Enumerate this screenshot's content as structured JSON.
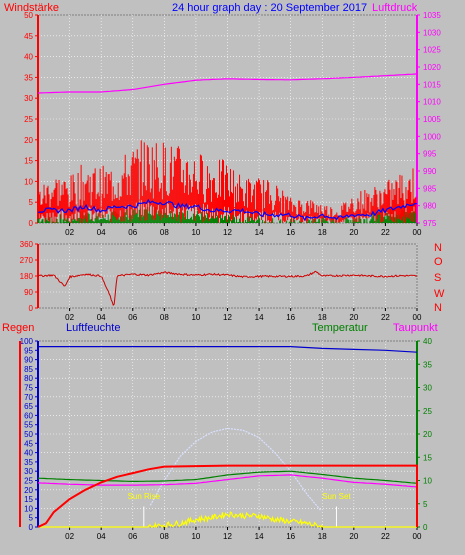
{
  "header": {
    "left_label": "Windstärke",
    "title": "24 hour graph day : 20 September 2017",
    "right_label": "Luftdruck"
  },
  "colors": {
    "background": "#c0c0c0",
    "plot_bg": "#c0c0c0",
    "grid": "#ffffff",
    "axis_dark": "#000000",
    "wind_red": "#ff0000",
    "wind_blue": "#0000ff",
    "wind_green": "#008000",
    "pressure_magenta": "#ff00ff",
    "direction_red": "#cc0000",
    "humidity_blue": "#0000cc",
    "temperature_green": "#008000",
    "dewpoint_magenta": "#ff00ff",
    "rain_red": "#ff0000",
    "solar_yellow": "#ffff00",
    "daylight_curve": "#d8e0ff"
  },
  "chart_data": [
    {
      "type": "line",
      "title": "24 hour graph day : 20 September 2017",
      "x_ticks": [
        "02",
        "04",
        "06",
        "08",
        "10",
        "12",
        "14",
        "16",
        "18",
        "20",
        "22",
        "00"
      ],
      "left_axis": {
        "label": "Windstärke",
        "ticks": [
          0,
          5,
          10,
          15,
          20,
          25,
          30,
          35,
          40,
          45,
          50
        ],
        "ylim": [
          0,
          50
        ]
      },
      "right_axis": {
        "label": "Luftdruck",
        "ticks": [
          975,
          980,
          985,
          990,
          995,
          1000,
          1005,
          1010,
          1015,
          1020,
          1025,
          1030,
          1035
        ],
        "ylim": [
          975,
          1035
        ]
      },
      "series": [
        {
          "color": "red",
          "axis": "left",
          "x": [
            0,
            1,
            2,
            3,
            4,
            5,
            6,
            7,
            8,
            9,
            10,
            11,
            12,
            13,
            14,
            15,
            16,
            17,
            18,
            19,
            20,
            21,
            22,
            23,
            24
          ],
          "y": [
            7,
            10,
            9,
            12,
            11,
            12,
            15,
            17,
            16,
            15,
            14,
            13,
            12,
            9,
            9,
            8,
            5,
            5,
            4,
            3,
            6,
            7,
            8,
            10,
            12
          ]
        },
        {
          "color": "blue",
          "axis": "left",
          "x": [
            0,
            1,
            2,
            3,
            4,
            5,
            6,
            7,
            8,
            9,
            10,
            11,
            12,
            13,
            14,
            15,
            16,
            17,
            18,
            19,
            20,
            21,
            22,
            23,
            24
          ],
          "y": [
            3,
            3,
            3,
            4,
            3,
            4,
            4,
            5,
            5,
            4,
            4,
            3,
            3,
            3,
            2,
            2,
            2,
            1,
            2,
            1,
            2,
            2,
            3,
            4,
            5
          ]
        },
        {
          "color": "green",
          "axis": "left",
          "x": [
            0,
            1,
            2,
            3,
            4,
            5,
            6,
            7,
            8,
            9,
            10,
            11,
            12,
            13,
            14,
            15,
            16,
            17,
            18,
            19,
            20,
            21,
            22,
            23,
            24
          ],
          "y": [
            1,
            1,
            1,
            2,
            1,
            2,
            2,
            3,
            3,
            2,
            2,
            1,
            1,
            1,
            1,
            0,
            0,
            0,
            1,
            0,
            1,
            1,
            2,
            3,
            3
          ]
        },
        {
          "color": "magenta",
          "axis": "right",
          "x": [
            0,
            2,
            4,
            6,
            8,
            10,
            12,
            14,
            16,
            18,
            20,
            22,
            24
          ],
          "y": [
            1012.5,
            1012.8,
            1012.8,
            1013.5,
            1015,
            1016.2,
            1016.6,
            1016.4,
            1016.3,
            1016.6,
            1017,
            1017.5,
            1018
          ]
        }
      ]
    },
    {
      "type": "line",
      "x_ticks": [
        "02",
        "04",
        "06",
        "08",
        "10",
        "12",
        "14",
        "16",
        "18",
        "20",
        "22",
        "00"
      ],
      "left_axis": {
        "ticks": [
          0,
          90,
          180,
          270,
          360
        ],
        "ylim": [
          0,
          360
        ]
      },
      "right_labels": [
        "N",
        "W",
        "S",
        "O",
        "N"
      ],
      "series": [
        {
          "color": "red",
          "x": [
            0,
            1,
            1.7,
            2,
            3,
            4,
            4.6,
            4.8,
            5,
            6,
            7,
            8,
            9,
            10,
            11,
            12,
            13,
            14,
            15,
            16,
            17,
            17.6,
            18,
            19,
            20,
            21,
            22,
            23,
            24
          ],
          "y": [
            180,
            185,
            120,
            175,
            190,
            180,
            60,
            0,
            180,
            190,
            185,
            200,
            190,
            185,
            190,
            185,
            175,
            178,
            178,
            178,
            180,
            205,
            180,
            182,
            185,
            180,
            178,
            182,
            180
          ]
        }
      ]
    },
    {
      "type": "line",
      "left_labels": [
        "Regen",
        "Luftfeuchte"
      ],
      "right_labels": [
        "Temperatur",
        "Taupunkt"
      ],
      "x_ticks": [
        "02",
        "04",
        "06",
        "08",
        "10",
        "12",
        "14",
        "16",
        "18",
        "20",
        "22",
        "00"
      ],
      "left_axis": {
        "ticks": [
          0,
          5,
          10,
          15,
          20,
          25,
          30,
          35,
          40,
          45,
          50,
          55,
          60,
          65,
          70,
          75,
          80,
          85,
          90,
          95,
          100
        ],
        "ylim": [
          0,
          100
        ]
      },
      "right_axis": {
        "ticks": [
          0,
          5,
          10,
          15,
          20,
          25,
          30,
          35,
          40
        ],
        "ylim": [
          0,
          40
        ]
      },
      "annotations": [
        "Sun Rise",
        "Sun Set"
      ],
      "series": [
        {
          "color": "blue",
          "axis": "left",
          "x": [
            0,
            4,
            8,
            12,
            16,
            18,
            20,
            22,
            24
          ],
          "y": [
            97,
            97,
            97,
            97,
            97,
            96,
            95.5,
            95,
            94
          ]
        },
        {
          "color": "red",
          "axis": "left",
          "x": [
            0,
            0.5,
            1,
            2,
            3,
            4,
            5,
            6,
            7,
            8,
            12,
            16,
            20,
            24,
            24.1
          ],
          "y": [
            0,
            2,
            8,
            15,
            20,
            24,
            27,
            29,
            31,
            32.5,
            33,
            33,
            33,
            33,
            0
          ]
        },
        {
          "color": "green",
          "axis": "right",
          "x": [
            0,
            2,
            4,
            6,
            8,
            10,
            12,
            14,
            16,
            18,
            20,
            22,
            24
          ],
          "y": [
            10.5,
            10.2,
            10,
            9.8,
            9.9,
            10.2,
            11.2,
            11.8,
            12,
            11.3,
            10.5,
            10,
            9.4
          ]
        },
        {
          "color": "magenta",
          "axis": "right",
          "x": [
            0,
            2,
            4,
            6,
            8,
            10,
            12,
            14,
            16,
            18,
            20,
            22,
            24
          ],
          "y": [
            9.5,
            9.2,
            9,
            9,
            9.1,
            9.4,
            10.2,
            11,
            11.2,
            10.5,
            9.6,
            9.2,
            8.6
          ]
        },
        {
          "color": "yellow",
          "axis": "left",
          "x": [
            0,
            7,
            8,
            9,
            10,
            11,
            12,
            13,
            14,
            15,
            16,
            17,
            18,
            24
          ],
          "y": [
            0,
            0,
            1,
            2,
            4,
            5,
            7,
            6,
            6,
            4,
            3,
            2,
            0,
            0
          ]
        },
        {
          "color": "lightblue",
          "axis": "left",
          "x": [
            7,
            8,
            9,
            10,
            11,
            12,
            13,
            14,
            15,
            16,
            17,
            18
          ],
          "y": [
            10,
            25,
            38,
            46,
            51,
            53,
            52,
            48,
            40,
            30,
            18,
            8
          ]
        }
      ]
    }
  ]
}
